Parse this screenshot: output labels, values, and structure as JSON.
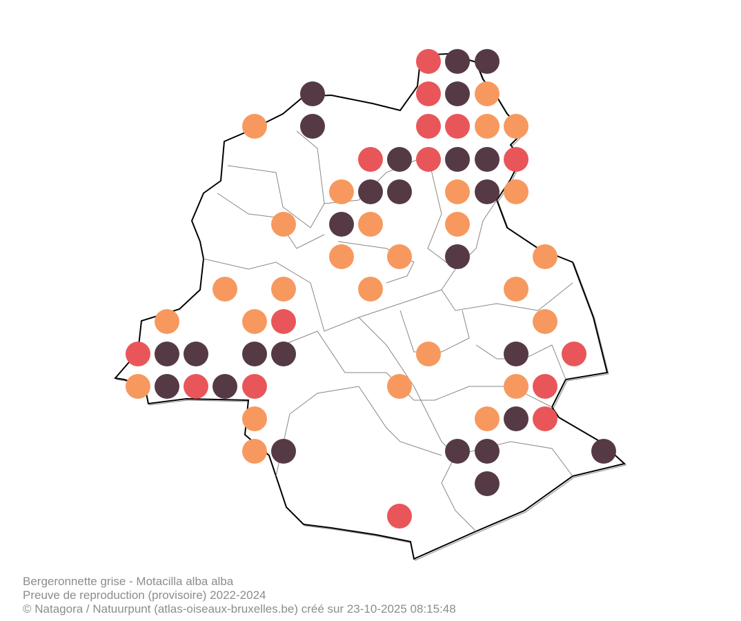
{
  "caption": {
    "line1": "Bergeronnette grise - Motacilla alba alba",
    "line2": "Preuve de reproduction (provisoire) 2022-2024",
    "line3": "© Natagora / Natuurpunt (atlas-oiseaux-bruxelles.be) créé sur 23-10-2025 08:15:48"
  }
}
